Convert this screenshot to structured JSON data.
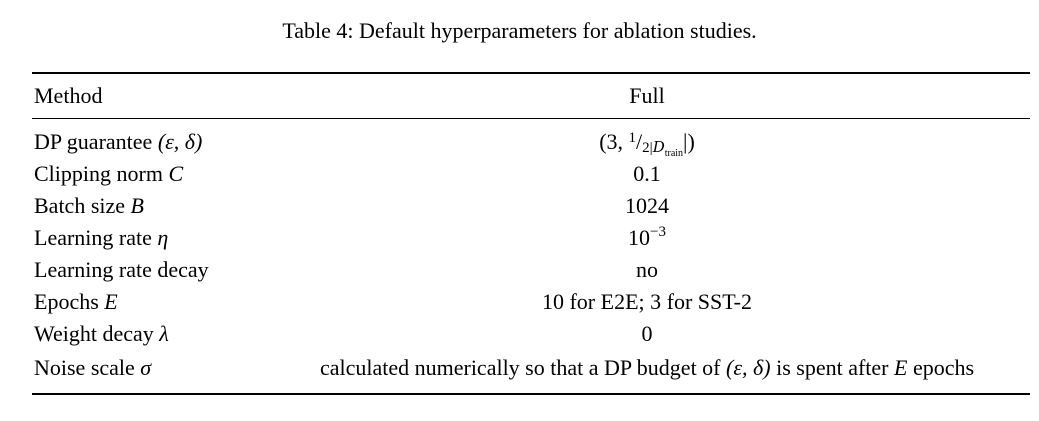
{
  "caption": "Table 4: Default hyperparameters for ablation studies.",
  "header": {
    "method": "Method",
    "full": "Full"
  },
  "rows": [
    {
      "label_text": "DP guarantee ",
      "label_math": "(ε, δ)",
      "value": "(3, 1/2|D_train|)"
    },
    {
      "label_text": "Clipping norm ",
      "label_math": "C",
      "value": "0.1"
    },
    {
      "label_text": "Batch size ",
      "label_math": "B",
      "value": "1024"
    },
    {
      "label_text": "Learning rate ",
      "label_math": "η",
      "value_base": "10",
      "value_exp": "−3"
    },
    {
      "label_text": "Learning rate decay",
      "label_math": "",
      "value": "no"
    },
    {
      "label_text": "Epochs ",
      "label_math": "E",
      "value": "10 for E2E; 3 for SST-2"
    },
    {
      "label_text": "Weight decay ",
      "label_math": "λ",
      "value": "0"
    },
    {
      "label_text": "Noise scale ",
      "label_math": "σ",
      "value_pre": "calculated numerically so that a DP budget of ",
      "value_math": "(ε, δ)",
      "value_mid": " is spent after ",
      "value_math2": "E",
      "value_post": " epochs"
    }
  ],
  "dp_value_parts": {
    "open": "(3, ",
    "num": "1",
    "slash": "/",
    "den_pre": "2|",
    "cal": "D",
    "sub": "train",
    "den_post": "|)"
  }
}
